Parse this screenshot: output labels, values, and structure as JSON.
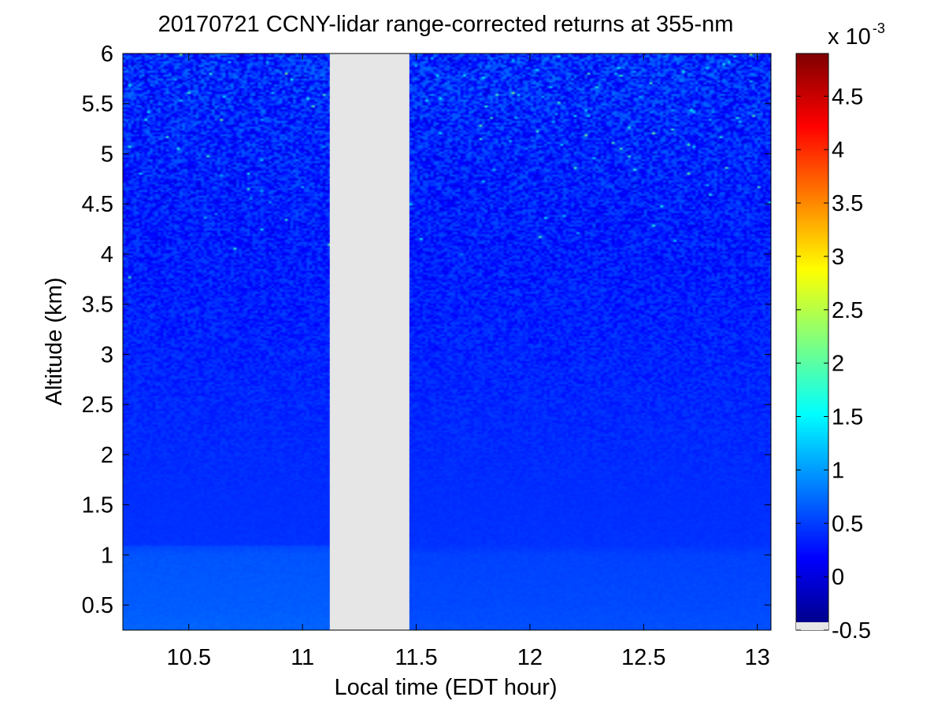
{
  "chart_data": {
    "type": "heatmap",
    "title": "20170721 CCNY-lidar range-corrected returns at 355-nm",
    "xlabel": "Local time (EDT hour)",
    "ylabel": "Altitude (km)",
    "xlim": [
      10.21,
      13.06
    ],
    "ylim": [
      0.25,
      6.0
    ],
    "x_ticks": [
      10.5,
      11,
      11.5,
      12,
      12.5,
      13
    ],
    "x_tick_labels": [
      "10.5",
      "11",
      "11.5",
      "12",
      "12.5",
      "13"
    ],
    "y_ticks": [
      0.5,
      1,
      1.5,
      2,
      2.5,
      3,
      3.5,
      4,
      4.5,
      5,
      5.5,
      6
    ],
    "y_tick_labels": [
      "0.5",
      "1",
      "1.5",
      "2",
      "2.5",
      "3",
      "3.5",
      "4",
      "4.5",
      "5",
      "5.5",
      "6"
    ],
    "data_gap": {
      "x_start": 11.12,
      "x_end": 11.47,
      "color": "#e6e6e6"
    },
    "colorbar": {
      "colormap": "jet",
      "range": [
        -0.5,
        4.9
      ],
      "multiplier_base": "x 10",
      "multiplier_exponent": "-3",
      "ticks": [
        -0.5,
        0,
        0.5,
        1,
        1.5,
        2,
        2.5,
        3,
        3.5,
        4,
        4.5
      ],
      "tick_labels": [
        "-0.5",
        "0",
        "0.5",
        "1",
        "1.5",
        "2",
        "2.5",
        "3",
        "3.5",
        "4",
        "4.5"
      ],
      "below_range_color": "#e6e6e6"
    },
    "field_profile": {
      "altitude_km": [
        0.25,
        0.5,
        1.0,
        1.1,
        1.5,
        2.0,
        2.5,
        3.0,
        3.5,
        4.0,
        4.5,
        5.0,
        5.5,
        6.0
      ],
      "mean_value_1e-3": [
        0.6,
        0.56,
        0.52,
        0.44,
        0.42,
        0.4,
        0.38,
        0.36,
        0.34,
        0.32,
        0.33,
        0.35,
        0.38,
        0.4
      ],
      "boundary_layer_top_km": 1.1,
      "noise_grows_with_altitude": true
    }
  }
}
